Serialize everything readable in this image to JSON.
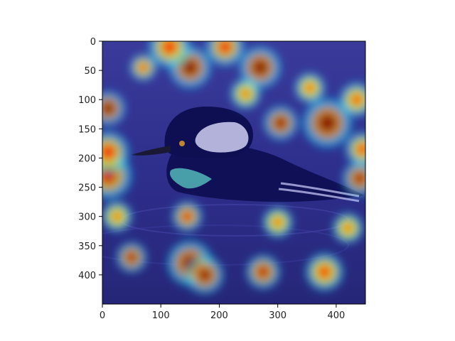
{
  "chart_data": {
    "type": "heatmap",
    "title": "",
    "xlabel": "",
    "ylabel": "",
    "xlim": [
      0,
      450
    ],
    "ylim": [
      450,
      0
    ],
    "x_ticks": [
      0,
      100,
      200,
      300,
      400
    ],
    "y_ticks": [
      0,
      50,
      100,
      150,
      200,
      250,
      300,
      350,
      400
    ],
    "grid": false,
    "legend": "none",
    "colormap": "jet",
    "base_color": "#2a2a8a",
    "image_subject": "hooded merganser duck on water with attention heatmap overlay",
    "hotspots": [
      {
        "x": 10,
        "y": 115,
        "r": 18,
        "intensity": 1.0
      },
      {
        "x": 10,
        "y": 230,
        "r": 25,
        "intensity": 0.8
      },
      {
        "x": 10,
        "y": 190,
        "r": 22,
        "intensity": 0.7
      },
      {
        "x": 150,
        "y": 45,
        "r": 22,
        "intensity": 1.0
      },
      {
        "x": 270,
        "y": 45,
        "r": 22,
        "intensity": 1.0
      },
      {
        "x": 115,
        "y": 10,
        "r": 22,
        "intensity": 0.65
      },
      {
        "x": 210,
        "y": 10,
        "r": 20,
        "intensity": 0.7
      },
      {
        "x": 305,
        "y": 140,
        "r": 18,
        "intensity": 0.95
      },
      {
        "x": 385,
        "y": 140,
        "r": 26,
        "intensity": 1.0
      },
      {
        "x": 440,
        "y": 235,
        "r": 18,
        "intensity": 0.9
      },
      {
        "x": 445,
        "y": 185,
        "r": 18,
        "intensity": 0.6
      },
      {
        "x": 435,
        "y": 100,
        "r": 18,
        "intensity": 0.55
      },
      {
        "x": 145,
        "y": 300,
        "r": 16,
        "intensity": 0.75
      },
      {
        "x": 50,
        "y": 370,
        "r": 16,
        "intensity": 0.9
      },
      {
        "x": 150,
        "y": 380,
        "r": 24,
        "intensity": 1.0
      },
      {
        "x": 175,
        "y": 400,
        "r": 20,
        "intensity": 0.95
      },
      {
        "x": 275,
        "y": 395,
        "r": 18,
        "intensity": 0.85
      },
      {
        "x": 380,
        "y": 395,
        "r": 20,
        "intensity": 0.6
      },
      {
        "x": 70,
        "y": 45,
        "r": 14,
        "intensity": 0.6
      },
      {
        "x": 245,
        "y": 90,
        "r": 16,
        "intensity": 0.45
      },
      {
        "x": 355,
        "y": 80,
        "r": 16,
        "intensity": 0.5
      },
      {
        "x": 25,
        "y": 300,
        "r": 16,
        "intensity": 0.45
      },
      {
        "x": 300,
        "y": 310,
        "r": 16,
        "intensity": 0.45
      },
      {
        "x": 420,
        "y": 320,
        "r": 16,
        "intensity": 0.45
      }
    ]
  }
}
